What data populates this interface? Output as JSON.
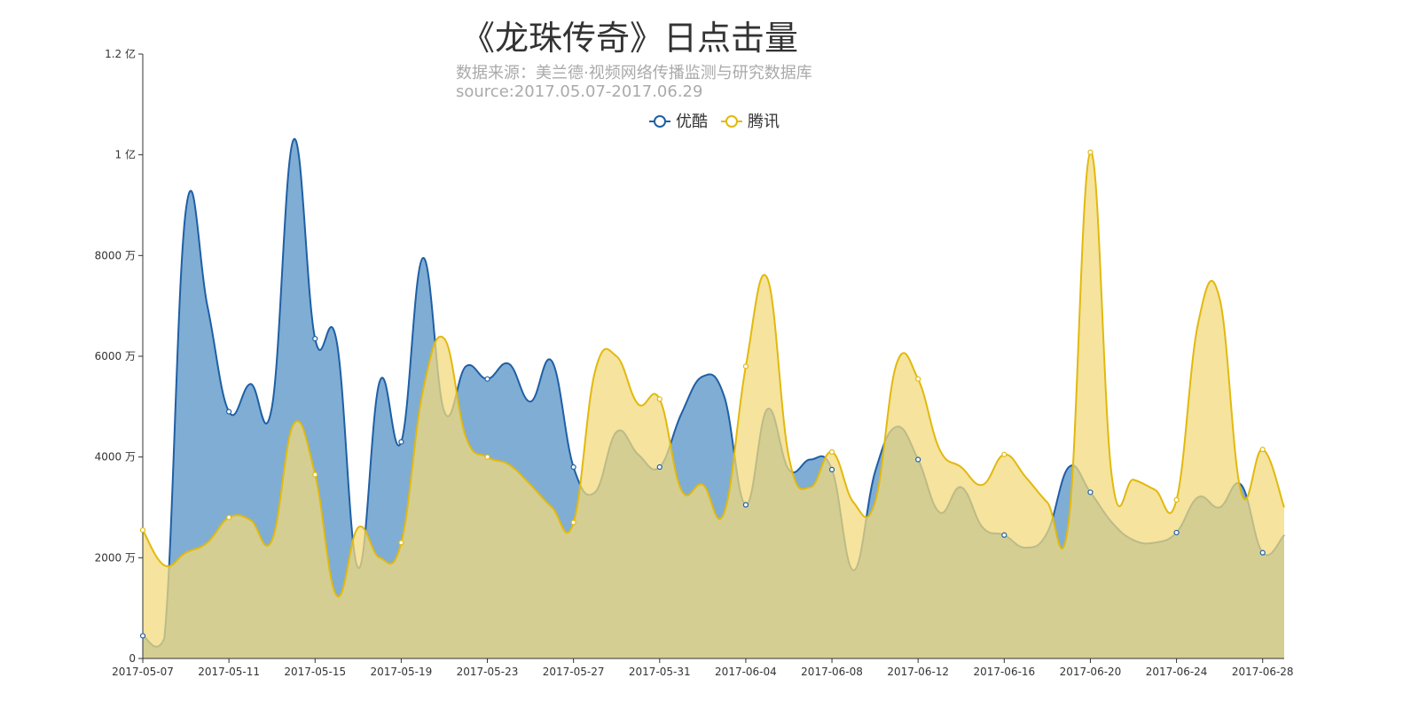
{
  "chart_data": {
    "type": "area",
    "title": "《龙珠传奇》日点击量",
    "subtitle_line1": "数据来源：美兰德·视频网络传播监测与研究数据库",
    "subtitle_line2": "source:2017.05.07-2017.06.29",
    "y_unit": "万",
    "ylim": [
      0,
      12000
    ],
    "y_ticks": [
      {
        "value": 0,
        "label": "0"
      },
      {
        "value": 2000,
        "label": "2000 万"
      },
      {
        "value": 4000,
        "label": "4000 万"
      },
      {
        "value": 6000,
        "label": "6000 万"
      },
      {
        "value": 8000,
        "label": "8000 万"
      },
      {
        "value": 10000,
        "label": "1 亿"
      },
      {
        "value": 12000,
        "label": "1.2 亿"
      }
    ],
    "x_tick_every": 4,
    "legend_position": "top-center",
    "grid": false,
    "x": [
      "2017-05-07",
      "2017-05-08",
      "2017-05-09",
      "2017-05-10",
      "2017-05-11",
      "2017-05-12",
      "2017-05-13",
      "2017-05-14",
      "2017-05-15",
      "2017-05-16",
      "2017-05-17",
      "2017-05-18",
      "2017-05-19",
      "2017-05-20",
      "2017-05-21",
      "2017-05-22",
      "2017-05-23",
      "2017-05-24",
      "2017-05-25",
      "2017-05-26",
      "2017-05-27",
      "2017-05-28",
      "2017-05-29",
      "2017-05-30",
      "2017-05-31",
      "2017-06-01",
      "2017-06-02",
      "2017-06-03",
      "2017-06-04",
      "2017-06-05",
      "2017-06-06",
      "2017-06-07",
      "2017-06-08",
      "2017-06-09",
      "2017-06-10",
      "2017-06-11",
      "2017-06-12",
      "2017-06-13",
      "2017-06-14",
      "2017-06-15",
      "2017-06-16",
      "2017-06-17",
      "2017-06-18",
      "2017-06-19",
      "2017-06-20",
      "2017-06-21",
      "2017-06-22",
      "2017-06-23",
      "2017-06-24",
      "2017-06-25",
      "2017-06-26",
      "2017-06-27",
      "2017-06-28",
      "2017-06-29"
    ],
    "series": [
      {
        "name": "优酷",
        "color": "#1f5fa5",
        "fill": "#7fadd4",
        "values": [
          450,
          400,
          8900,
          7000,
          4900,
          5450,
          5000,
          10300,
          6350,
          6300,
          1800,
          5500,
          4300,
          7950,
          4900,
          5800,
          5550,
          5850,
          5100,
          5900,
          3800,
          3300,
          4500,
          4050,
          3800,
          4850,
          5600,
          5200,
          3050,
          4950,
          3750,
          3950,
          3750,
          1750,
          3700,
          4600,
          3950,
          2900,
          3400,
          2600,
          2450,
          2200,
          2500,
          3800,
          3300,
          2700,
          2350,
          2300,
          2500,
          3200,
          3000,
          3450,
          2100,
          2450
        ]
      },
      {
        "name": "腾讯",
        "color": "#e2b90c",
        "fill": "#f1da7e",
        "values": [
          2550,
          1850,
          2100,
          2300,
          2800,
          2750,
          2350,
          4650,
          3650,
          1250,
          2600,
          2000,
          2300,
          5300,
          6350,
          4400,
          4000,
          3850,
          3450,
          3000,
          2700,
          5700,
          6000,
          5050,
          5150,
          3350,
          3450,
          2900,
          5800,
          7550,
          4000,
          3400,
          4100,
          3100,
          3100,
          5850,
          5550,
          4150,
          3800,
          3450,
          4050,
          3600,
          3100,
          2750,
          10050,
          3600,
          3550,
          3350,
          3150,
          6650,
          7150,
          3300,
          4150,
          3000
        ]
      }
    ]
  }
}
